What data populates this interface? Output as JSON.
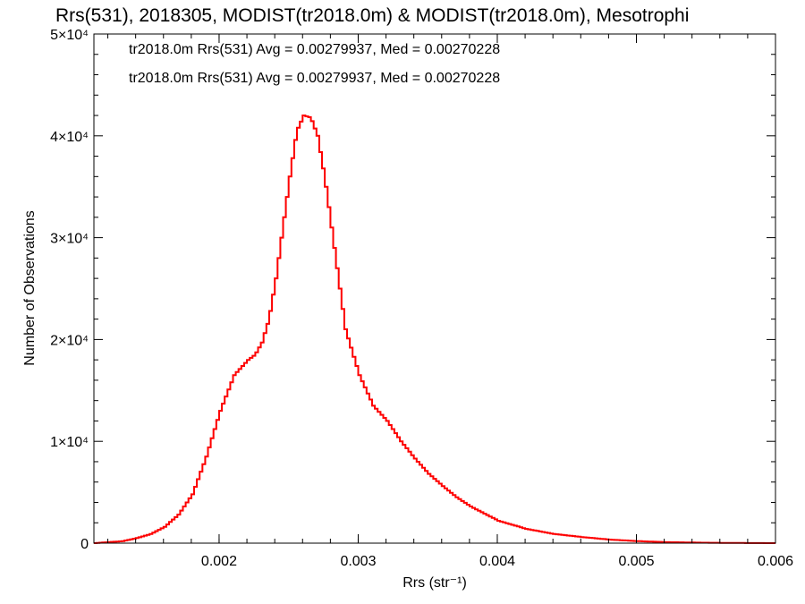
{
  "chart_data": {
    "type": "line",
    "title": "Rrs(531), 2018305, MODIST(tr2018.0m) & MODIST(tr2018.0m), Mesotrophi",
    "xlabel": "Rrs (str⁻¹)",
    "ylabel": "Number of Observations",
    "xlim": [
      0.0011,
      0.006
    ],
    "ylim": [
      0,
      50000
    ],
    "x_ticks": [
      0.002,
      0.003,
      0.004,
      0.005,
      0.006
    ],
    "x_tick_labels": [
      "0.002",
      "0.003",
      "0.004",
      "0.005",
      "0.006"
    ],
    "y_ticks": [
      0,
      10000,
      20000,
      30000,
      40000,
      50000
    ],
    "y_tick_labels": [
      "0",
      "1×10⁴",
      "2×10⁴",
      "3×10⁴",
      "4×10⁴",
      "5×10⁴"
    ],
    "grid": false,
    "legend_position": "top-left",
    "series": [
      {
        "name": "tr2018.0m Rrs(531) Avg = 0.00279937, Med = 0.00270228",
        "color": "#000000",
        "x": [
          0.0011,
          0.0013,
          0.0014,
          0.0015,
          0.0016,
          0.0017,
          0.0018,
          0.0019,
          0.002,
          0.0021,
          0.0022,
          0.00225,
          0.0023,
          0.00235,
          0.0024,
          0.00245,
          0.0025,
          0.00255,
          0.0026,
          0.00265,
          0.0027,
          0.00275,
          0.0028,
          0.00285,
          0.0029,
          0.003,
          0.0031,
          0.0032,
          0.0033,
          0.0034,
          0.0035,
          0.0036,
          0.0037,
          0.0038,
          0.004,
          0.0042,
          0.0044,
          0.0046,
          0.0048,
          0.005,
          0.0052,
          0.0055,
          0.0058,
          0.006
        ],
        "y": [
          0,
          200,
          500,
          900,
          1600,
          2800,
          4800,
          8500,
          13000,
          16500,
          18000,
          18500,
          19700,
          22000,
          26000,
          31000,
          36000,
          40500,
          42000,
          41800,
          40000,
          36000,
          31000,
          26000,
          21000,
          16500,
          13500,
          12000,
          10000,
          8300,
          6800,
          5600,
          4500,
          3600,
          2200,
          1400,
          900,
          600,
          350,
          200,
          100,
          40,
          10,
          0
        ]
      },
      {
        "name": "tr2018.0m Rrs(531) Avg = 0.00279937, Med = 0.00270228",
        "color": "#ff0000",
        "x": [
          0.0011,
          0.0013,
          0.0014,
          0.0015,
          0.0016,
          0.0017,
          0.0018,
          0.0019,
          0.002,
          0.0021,
          0.0022,
          0.00225,
          0.0023,
          0.00235,
          0.0024,
          0.00245,
          0.0025,
          0.00255,
          0.0026,
          0.00265,
          0.0027,
          0.00275,
          0.0028,
          0.00285,
          0.0029,
          0.003,
          0.0031,
          0.0032,
          0.0033,
          0.0034,
          0.0035,
          0.0036,
          0.0037,
          0.0038,
          0.004,
          0.0042,
          0.0044,
          0.0046,
          0.0048,
          0.005,
          0.0052,
          0.0055,
          0.0058,
          0.006
        ],
        "y": [
          0,
          200,
          500,
          900,
          1600,
          2800,
          4800,
          8500,
          13000,
          16500,
          18000,
          18500,
          19700,
          22000,
          26000,
          31000,
          36000,
          40500,
          42000,
          41800,
          40000,
          36000,
          31000,
          26000,
          21000,
          16500,
          13500,
          12000,
          10000,
          8300,
          6800,
          5600,
          4500,
          3600,
          2200,
          1400,
          900,
          600,
          350,
          200,
          100,
          40,
          10,
          0
        ]
      }
    ]
  }
}
